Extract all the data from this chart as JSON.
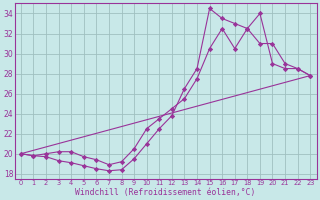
{
  "xlabel": "Windchill (Refroidissement éolien,°C)",
  "background_color": "#c8e8e8",
  "grid_color": "#a0c0c0",
  "line_color": "#993399",
  "xlim": [
    -0.5,
    23.5
  ],
  "ylim": [
    17.5,
    35.0
  ],
  "yticks": [
    18,
    20,
    22,
    24,
    26,
    28,
    30,
    32,
    34
  ],
  "xticks": [
    0,
    1,
    2,
    3,
    4,
    5,
    6,
    7,
    8,
    9,
    10,
    11,
    12,
    13,
    14,
    15,
    16,
    17,
    18,
    19,
    20,
    21,
    22,
    23
  ],
  "lines": [
    {
      "x": [
        0,
        1,
        2,
        3,
        4,
        5,
        6,
        7,
        8,
        9,
        10,
        11,
        12,
        13,
        14,
        15,
        16,
        17,
        18,
        19,
        20,
        21,
        22,
        23
      ],
      "y": [
        20,
        19.8,
        19.7,
        19.3,
        19.1,
        18.8,
        18.5,
        18.3,
        18.4,
        19.5,
        21.0,
        22.5,
        23.8,
        26.5,
        28.5,
        34.5,
        33.5,
        33.0,
        32.5,
        34.0,
        29.0,
        28.5,
        28.5,
        27.8
      ],
      "has_markers": true
    },
    {
      "x": [
        0,
        1,
        2,
        3,
        4,
        5,
        6,
        7,
        8,
        9,
        10,
        11,
        12,
        13,
        14,
        15,
        16,
        17,
        18,
        19,
        20,
        21,
        22,
        23
      ],
      "y": [
        20,
        19.8,
        20.0,
        20.2,
        20.2,
        19.7,
        19.4,
        18.9,
        19.2,
        20.5,
        22.5,
        23.5,
        24.5,
        25.5,
        27.5,
        30.5,
        32.5,
        30.5,
        32.5,
        31.0,
        31.0,
        29.0,
        28.5,
        27.8
      ],
      "has_markers": true
    },
    {
      "x": [
        0,
        23
      ],
      "y": [
        20,
        27.8
      ],
      "has_markers": false
    }
  ]
}
